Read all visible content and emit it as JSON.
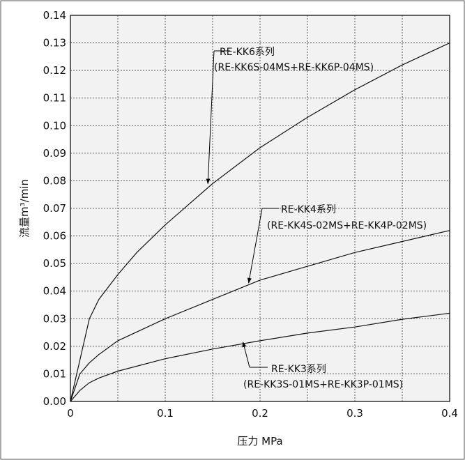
{
  "chart_data": {
    "type": "line",
    "xlabel": "压力 MPa",
    "ylabel": "流量m³/min",
    "xlim": [
      0,
      0.4
    ],
    "ylim": [
      0,
      0.14
    ],
    "x_ticks": [
      0,
      0.1,
      0.2,
      0.3,
      0.4
    ],
    "x_tick_labels": [
      "0",
      "0.1",
      "0.2",
      "0.3",
      "0.4"
    ],
    "y_ticks": [
      0,
      0.01,
      0.02,
      0.03,
      0.04,
      0.05,
      0.06,
      0.07,
      0.08,
      0.09,
      0.1,
      0.11,
      0.12,
      0.13,
      0.14
    ],
    "y_tick_labels": [
      "0.00",
      "0.01",
      "0.02",
      "0.03",
      "0.04",
      "0.05",
      "0.06",
      "0.07",
      "0.08",
      "0.09",
      "0.10",
      "0.11",
      "0.12",
      "0.13",
      "0.14"
    ],
    "x_minor_grid": [
      0.05,
      0.15,
      0.25,
      0.35
    ],
    "grid": true,
    "series": [
      {
        "name": "RE-KK6系列",
        "x": [
          0,
          0.01,
          0.02,
          0.03,
          0.05,
          0.07,
          0.1,
          0.15,
          0.2,
          0.25,
          0.3,
          0.35,
          0.4
        ],
        "values": [
          0,
          0.015,
          0.03,
          0.037,
          0.046,
          0.054,
          0.064,
          0.079,
          0.092,
          0.103,
          0.113,
          0.122,
          0.13
        ]
      },
      {
        "name": "RE-KK4系列",
        "x": [
          0,
          0.01,
          0.02,
          0.03,
          0.05,
          0.1,
          0.15,
          0.2,
          0.25,
          0.3,
          0.35,
          0.4
        ],
        "values": [
          0,
          0.01,
          0.014,
          0.017,
          0.022,
          0.03,
          0.037,
          0.044,
          0.049,
          0.054,
          0.058,
          0.062
        ]
      },
      {
        "name": "RE-KK3系列",
        "x": [
          0,
          0.01,
          0.02,
          0.03,
          0.05,
          0.1,
          0.15,
          0.2,
          0.25,
          0.3,
          0.35,
          0.4
        ],
        "values": [
          0,
          0.004,
          0.0068,
          0.0085,
          0.011,
          0.0155,
          0.019,
          0.022,
          0.0248,
          0.027,
          0.0298,
          0.032
        ]
      }
    ],
    "annotations": [
      {
        "line1": "RE-KK6系列",
        "line2": "(RE-KK6S-04MS+RE-KK6P-04MS)",
        "point_x": 0.145,
        "point_y": 0.079
      },
      {
        "line1": "RE-KK4系列",
        "line2": "(RE-KK4S-02MS+RE-KK4P-02MS)",
        "point_x": 0.188,
        "point_y": 0.043
      },
      {
        "line1": "RE-KK3系列",
        "line2": "(RE-KK3S-01MS+RE-KK3P-01MS)",
        "point_x": 0.182,
        "point_y": 0.0215
      }
    ]
  }
}
